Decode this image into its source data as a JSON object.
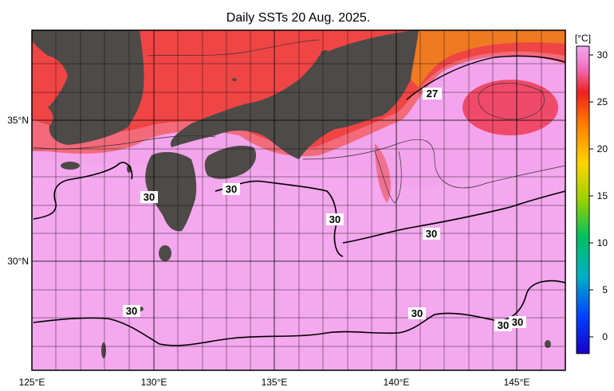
{
  "title": "Daily SSTs 20 Aug. 2025.",
  "map": {
    "lon_labels": [
      "125°E",
      "130°E",
      "135°E",
      "140°E",
      "145°E"
    ],
    "lat_labels": [
      "35°N",
      "30°N"
    ]
  },
  "colorbar": {
    "unit": "[°C]",
    "ticks": [
      "30",
      "25",
      "20",
      "15",
      "10",
      "5",
      "0"
    ]
  },
  "contour_labels": [
    "27",
    "30",
    "30",
    "30",
    "30",
    "30",
    "30",
    "30",
    "30"
  ],
  "colors": {
    "land": "#4d4a48",
    "sea_warm": "#f2a0ea",
    "sea_hot": "#f13a3a",
    "sea_orange": "#f07a22"
  }
}
